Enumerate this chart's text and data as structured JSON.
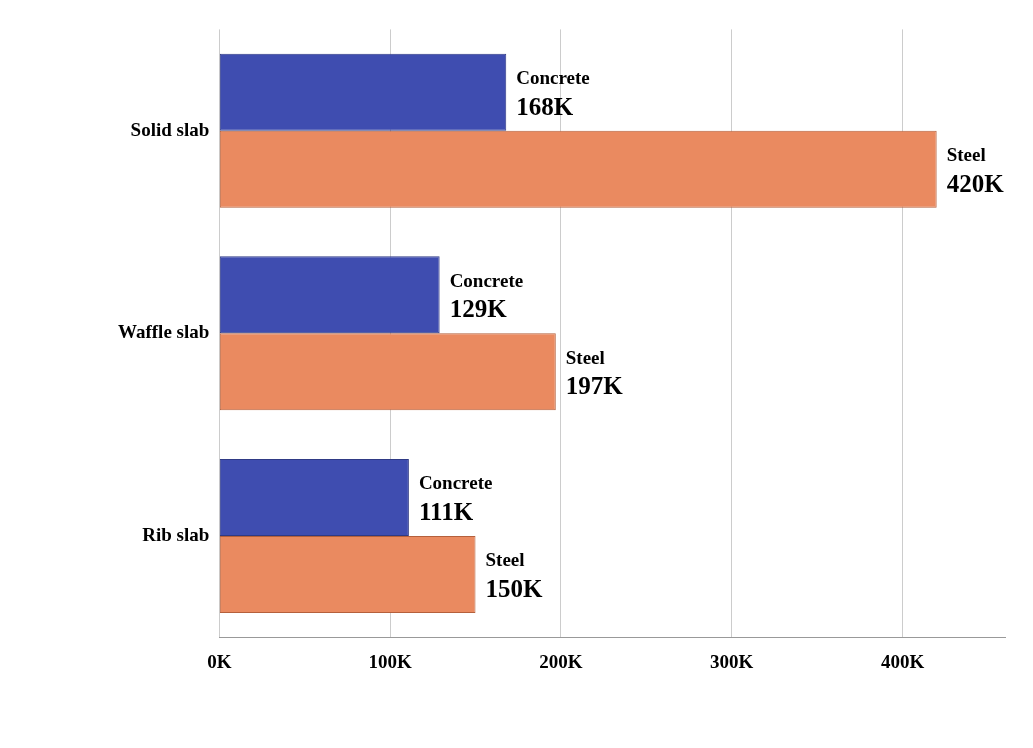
{
  "chart_data": {
    "type": "bar",
    "orientation": "horizontal",
    "categories": [
      "Solid slab",
      "Waffle slab",
      "Rib slab"
    ],
    "series": [
      {
        "name": "Concrete",
        "color": "#3f4db0",
        "values": [
          168000,
          129000,
          111000
        ],
        "value_labels": [
          "168K",
          "129K",
          "111K"
        ]
      },
      {
        "name": "Steel",
        "color": "#ea8a60",
        "values": [
          420000,
          197000,
          150000
        ],
        "value_labels": [
          "420K",
          "197K",
          "150K"
        ]
      }
    ],
    "xlim": [
      0,
      460000
    ],
    "xticks": [
      {
        "value": 0,
        "label": "0K"
      },
      {
        "value": 100000,
        "label": "100K"
      },
      {
        "value": 200000,
        "label": "200K"
      },
      {
        "value": 300000,
        "label": "300K"
      },
      {
        "value": 400000,
        "label": "400K"
      }
    ],
    "grid": "x",
    "legend": false
  }
}
